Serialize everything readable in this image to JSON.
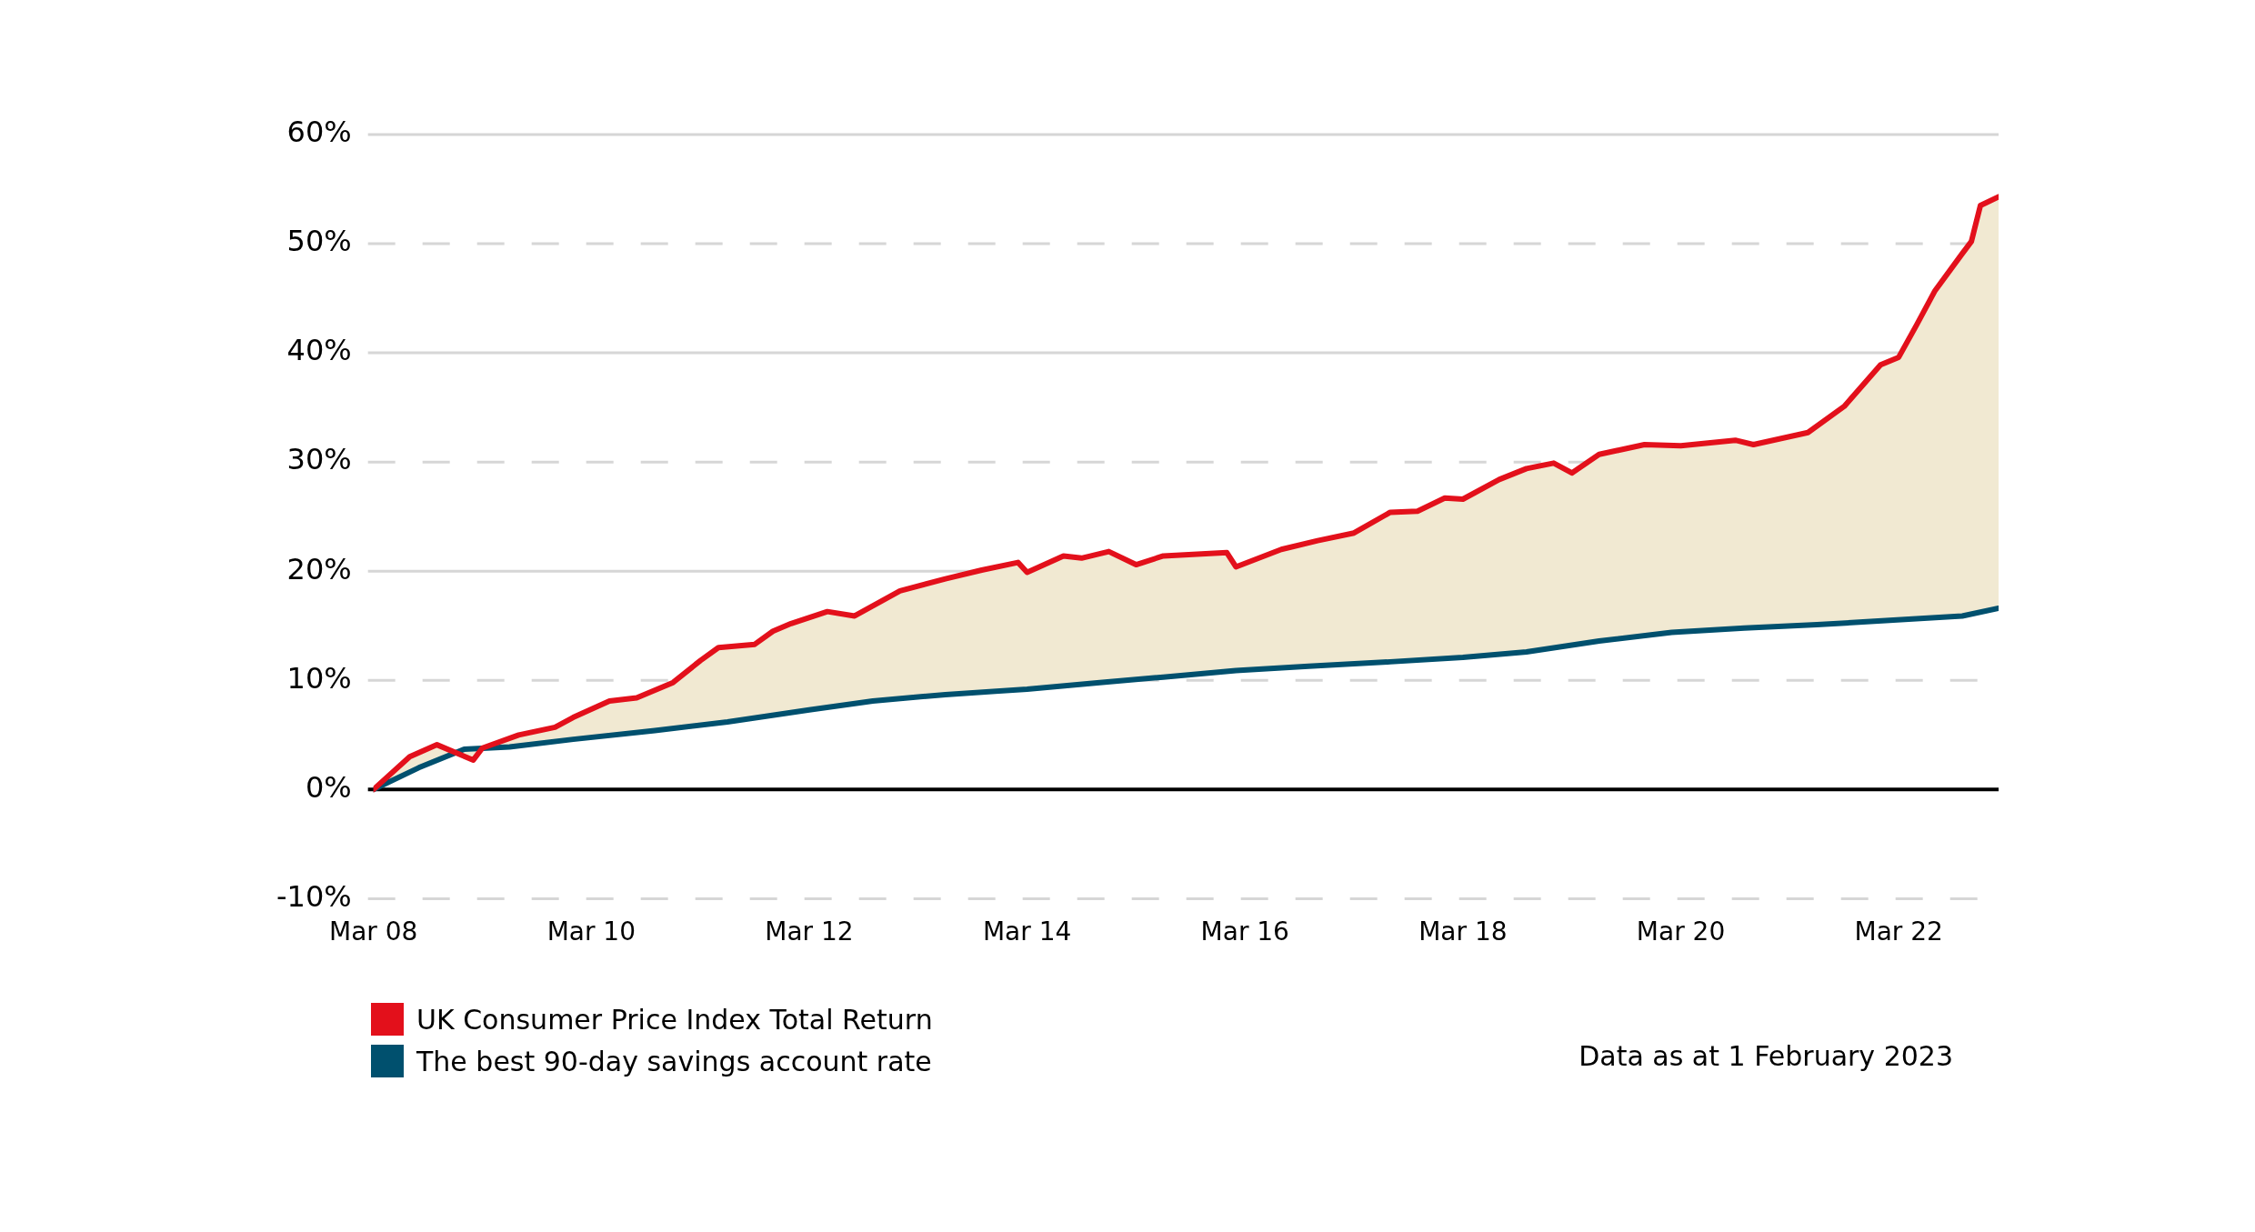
{
  "chart_data": {
    "type": "line",
    "series": [
      {
        "name": "UK Consumer Price Index Total Return",
        "color": "#e3101b",
        "x": [
          "2008-03",
          "2008-07",
          "2008-10",
          "2009-02",
          "2009-03",
          "2009-07",
          "2009-11",
          "2010-01",
          "2010-05",
          "2010-08",
          "2010-12",
          "2011-03",
          "2011-05",
          "2011-09",
          "2011-11",
          "2012-01",
          "2012-05",
          "2012-08",
          "2013-01",
          "2013-06",
          "2013-10",
          "2014-02",
          "2014-03",
          "2014-07",
          "2014-09",
          "2014-12",
          "2015-03",
          "2015-06",
          "2016-01",
          "2016-02",
          "2016-07",
          "2016-11",
          "2017-03",
          "2017-07",
          "2017-10",
          "2018-01",
          "2018-03",
          "2018-07",
          "2018-10",
          "2019-01",
          "2019-03",
          "2019-06",
          "2019-11",
          "2020-03",
          "2020-09",
          "2020-11",
          "2021-05",
          "2021-09",
          "2022-01",
          "2022-03",
          "2022-05",
          "2022-07",
          "2022-10",
          "2022-11",
          "2022-12",
          "2023-02"
        ],
        "values": [
          0,
          3.0,
          4.1,
          2.7,
          3.8,
          5.0,
          5.7,
          6.6,
          8.1,
          8.4,
          9.8,
          11.8,
          13.0,
          13.3,
          14.5,
          15.2,
          16.3,
          15.9,
          18.2,
          19.3,
          20.1,
          20.8,
          19.9,
          21.4,
          21.2,
          21.8,
          20.6,
          21.4,
          21.7,
          20.4,
          22.0,
          22.8,
          23.5,
          25.4,
          25.5,
          26.7,
          26.6,
          28.4,
          29.4,
          29.9,
          29.0,
          30.7,
          31.6,
          31.5,
          32.0,
          31.6,
          32.7,
          35.1,
          38.9,
          39.6,
          42.6,
          45.7,
          49.1,
          50.2,
          53.5,
          54.3
        ]
      },
      {
        "name": "The best 90-day savings account rate",
        "color": "#00506e",
        "x": [
          "2008-03",
          "2008-08",
          "2009-01",
          "2009-06",
          "2010-01",
          "2010-10",
          "2011-06",
          "2012-03",
          "2012-10",
          "2013-06",
          "2014-03",
          "2014-11",
          "2015-06",
          "2016-02",
          "2016-10",
          "2017-07",
          "2018-03",
          "2018-10",
          "2019-06",
          "2020-02",
          "2020-10",
          "2021-06",
          "2022-02",
          "2022-10",
          "2023-02"
        ],
        "values": [
          0,
          2.0,
          3.7,
          3.9,
          4.6,
          5.4,
          6.2,
          7.3,
          8.1,
          8.7,
          9.2,
          9.8,
          10.3,
          10.9,
          11.3,
          11.7,
          12.1,
          12.6,
          13.6,
          14.4,
          14.8,
          15.1,
          15.5,
          15.9,
          16.6
        ]
      }
    ],
    "xlim": [
      "2008-03",
      "2023-02"
    ],
    "xticks": [
      {
        "value": "2008-03",
        "label": "Mar 08"
      },
      {
        "value": "2010-03",
        "label": "Mar 10"
      },
      {
        "value": "2012-03",
        "label": "Mar 12"
      },
      {
        "value": "2014-03",
        "label": "Mar 14"
      },
      {
        "value": "2016-03",
        "label": "Mar 16"
      },
      {
        "value": "2018-03",
        "label": "Mar 18"
      },
      {
        "value": "2020-03",
        "label": "Mar 20"
      },
      {
        "value": "2022-03",
        "label": "Mar 22"
      }
    ],
    "ylim": [
      -10,
      60
    ],
    "yticks": [
      {
        "value": -10,
        "label": "-10%"
      },
      {
        "value": 0,
        "label": "0%"
      },
      {
        "value": 10,
        "label": "10%"
      },
      {
        "value": 20,
        "label": "20%"
      },
      {
        "value": 30,
        "label": "30%"
      },
      {
        "value": 40,
        "label": "40%"
      },
      {
        "value": 50,
        "label": "50%"
      },
      {
        "value": 60,
        "label": "60%"
      }
    ],
    "grid": "y",
    "legend": "bottom left",
    "marker": "none",
    "line_style": "solid",
    "annotations": [
      "Data as at 1 February 2023"
    ]
  }
}
